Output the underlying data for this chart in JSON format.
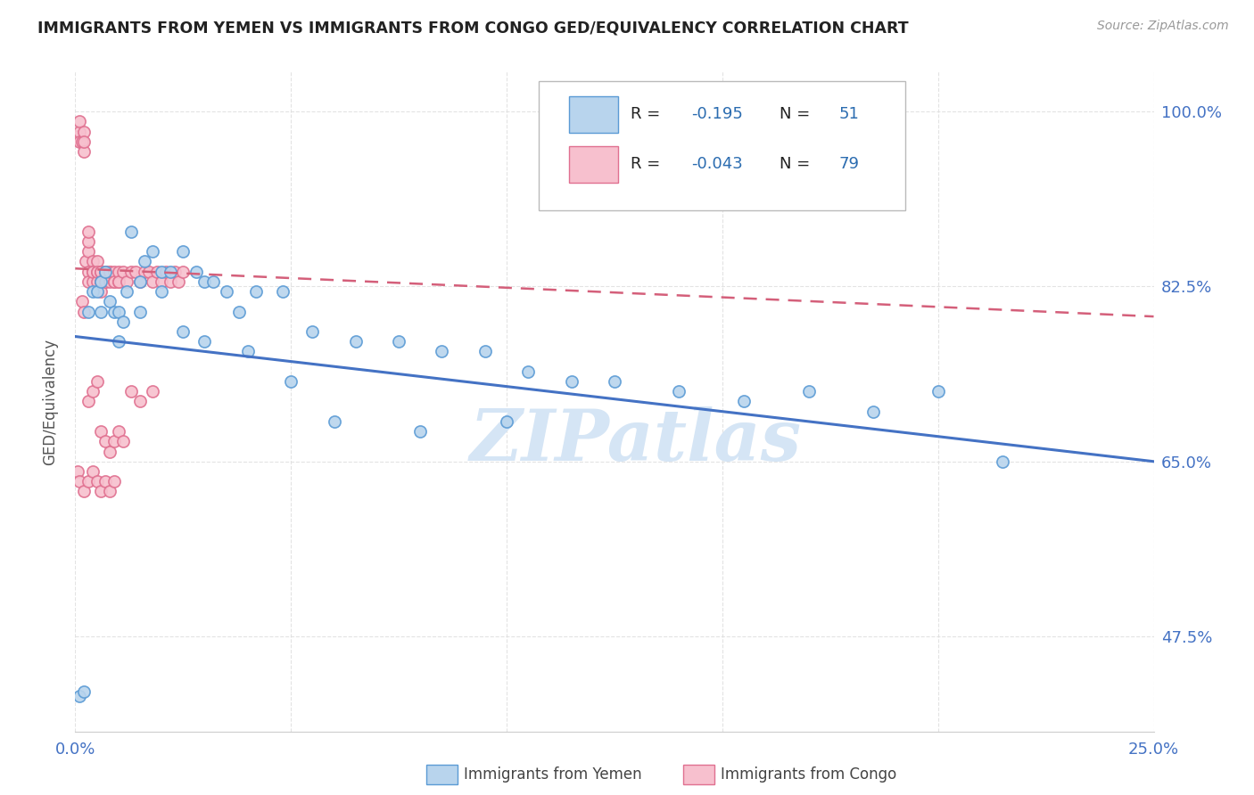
{
  "title": "IMMIGRANTS FROM YEMEN VS IMMIGRANTS FROM CONGO GED/EQUIVALENCY CORRELATION CHART",
  "source": "Source: ZipAtlas.com",
  "ylabel": "GED/Equivalency",
  "xlim": [
    0.0,
    0.25
  ],
  "ylim": [
    0.38,
    1.04
  ],
  "yticks": [
    0.475,
    0.65,
    0.825,
    1.0
  ],
  "yticklabels": [
    "47.5%",
    "65.0%",
    "82.5%",
    "100.0%"
  ],
  "legend_R_yemen": "-0.195",
  "legend_N_yemen": "51",
  "legend_R_congo": "-0.043",
  "legend_N_congo": "79",
  "color_yemen_fill": "#b8d4ed",
  "color_yemen_edge": "#5b9bd5",
  "color_congo_fill": "#f7c0ce",
  "color_congo_edge": "#e07090",
  "color_trend_yemen": "#4472c4",
  "color_trend_congo": "#d45f7a",
  "watermark": "ZIPatlas",
  "watermark_color": "#d5e5f5",
  "background_color": "#ffffff",
  "legend_text_color": "#1a1a2e",
  "legend_value_color": "#2b6cb0",
  "yemen_x": [
    0.001,
    0.002,
    0.003,
    0.004,
    0.005,
    0.006,
    0.006,
    0.007,
    0.008,
    0.009,
    0.01,
    0.011,
    0.012,
    0.013,
    0.015,
    0.016,
    0.018,
    0.02,
    0.022,
    0.025,
    0.028,
    0.03,
    0.032,
    0.035,
    0.038,
    0.042,
    0.048,
    0.055,
    0.065,
    0.075,
    0.085,
    0.095,
    0.105,
    0.115,
    0.125,
    0.14,
    0.155,
    0.17,
    0.185,
    0.2,
    0.01,
    0.015,
    0.02,
    0.025,
    0.03,
    0.04,
    0.05,
    0.06,
    0.08,
    0.1,
    0.215
  ],
  "yemen_y": [
    0.415,
    0.42,
    0.8,
    0.82,
    0.82,
    0.8,
    0.83,
    0.84,
    0.81,
    0.8,
    0.8,
    0.79,
    0.82,
    0.88,
    0.83,
    0.85,
    0.86,
    0.84,
    0.84,
    0.86,
    0.84,
    0.83,
    0.83,
    0.82,
    0.8,
    0.82,
    0.82,
    0.78,
    0.77,
    0.77,
    0.76,
    0.76,
    0.74,
    0.73,
    0.73,
    0.72,
    0.71,
    0.72,
    0.7,
    0.72,
    0.77,
    0.8,
    0.82,
    0.78,
    0.77,
    0.76,
    0.73,
    0.69,
    0.68,
    0.69,
    0.65
  ],
  "congo_x": [
    0.0005,
    0.001,
    0.001,
    0.001,
    0.0015,
    0.002,
    0.002,
    0.002,
    0.0025,
    0.003,
    0.003,
    0.003,
    0.003,
    0.003,
    0.004,
    0.004,
    0.004,
    0.004,
    0.005,
    0.005,
    0.005,
    0.005,
    0.006,
    0.006,
    0.006,
    0.006,
    0.006,
    0.007,
    0.007,
    0.007,
    0.007,
    0.008,
    0.008,
    0.008,
    0.009,
    0.009,
    0.009,
    0.01,
    0.01,
    0.01,
    0.011,
    0.012,
    0.013,
    0.014,
    0.015,
    0.016,
    0.017,
    0.018,
    0.019,
    0.02,
    0.021,
    0.022,
    0.023,
    0.024,
    0.0015,
    0.002,
    0.003,
    0.004,
    0.005,
    0.006,
    0.007,
    0.008,
    0.009,
    0.01,
    0.011,
    0.0005,
    0.001,
    0.002,
    0.003,
    0.004,
    0.005,
    0.006,
    0.007,
    0.025,
    0.008,
    0.009,
    0.013,
    0.015,
    0.018
  ],
  "congo_y": [
    0.975,
    0.98,
    0.99,
    0.97,
    0.97,
    0.96,
    0.98,
    0.97,
    0.85,
    0.86,
    0.87,
    0.88,
    0.84,
    0.83,
    0.85,
    0.84,
    0.83,
    0.84,
    0.84,
    0.85,
    0.83,
    0.84,
    0.83,
    0.84,
    0.84,
    0.83,
    0.82,
    0.84,
    0.83,
    0.84,
    0.83,
    0.84,
    0.83,
    0.84,
    0.83,
    0.84,
    0.83,
    0.83,
    0.84,
    0.83,
    0.84,
    0.83,
    0.84,
    0.84,
    0.83,
    0.84,
    0.84,
    0.83,
    0.84,
    0.83,
    0.84,
    0.83,
    0.84,
    0.83,
    0.81,
    0.8,
    0.71,
    0.72,
    0.73,
    0.68,
    0.67,
    0.66,
    0.67,
    0.68,
    0.67,
    0.64,
    0.63,
    0.62,
    0.63,
    0.64,
    0.63,
    0.62,
    0.63,
    0.84,
    0.62,
    0.63,
    0.72,
    0.71,
    0.72
  ]
}
